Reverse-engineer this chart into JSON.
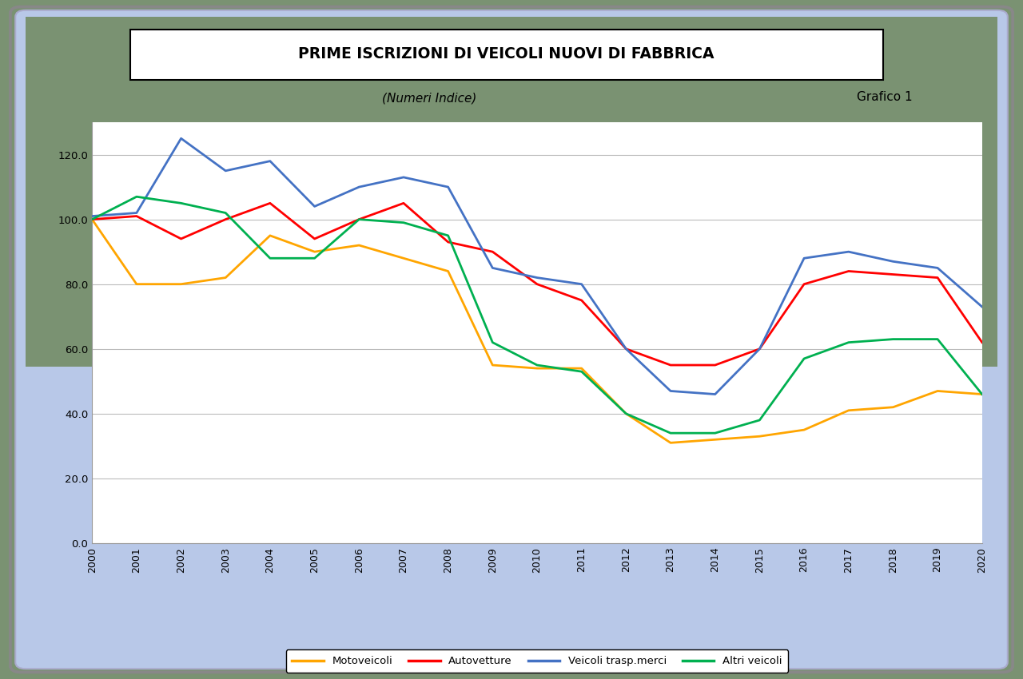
{
  "title": "PRIME ISCRIZIONI DI VEICOLI NUOVI DI FABBRICA",
  "subtitle": "(Numeri Indice)",
  "grafico_label": "Grafico 1",
  "years": [
    2000,
    2001,
    2002,
    2003,
    2004,
    2005,
    2006,
    2007,
    2008,
    2009,
    2010,
    2011,
    2012,
    2013,
    2014,
    2015,
    2016,
    2017,
    2018,
    2019,
    2020
  ],
  "motoveicoli": [
    100.0,
    80.0,
    80.0,
    82.0,
    95.0,
    90.0,
    92.0,
    88.0,
    84.0,
    55.0,
    54.0,
    54.0,
    40.0,
    31.0,
    32.0,
    33.0,
    35.0,
    41.0,
    42.0,
    47.0,
    46.0
  ],
  "autovetture": [
    100.0,
    101.0,
    94.0,
    100.0,
    105.0,
    94.0,
    100.0,
    105.0,
    93.0,
    90.0,
    80.0,
    75.0,
    60.0,
    55.0,
    55.0,
    60.0,
    80.0,
    84.0,
    83.0,
    82.0,
    62.0
  ],
  "veicoli_merci": [
    101.0,
    102.0,
    125.0,
    115.0,
    118.0,
    104.0,
    110.0,
    113.0,
    110.0,
    85.0,
    82.0,
    80.0,
    60.0,
    47.0,
    46.0,
    60.0,
    88.0,
    90.0,
    87.0,
    85.0,
    73.0
  ],
  "altri_veicoli": [
    100.0,
    107.0,
    105.0,
    102.0,
    88.0,
    88.0,
    100.0,
    99.0,
    95.0,
    62.0,
    55.0,
    53.0,
    40.0,
    34.0,
    34.0,
    38.0,
    57.0,
    62.0,
    63.0,
    63.0,
    46.0
  ],
  "motoveicoli_color": "#FFA500",
  "autovetture_color": "#FF0000",
  "veicoli_merci_color": "#4472C4",
  "altri_veicoli_color": "#00B050",
  "background_outer": "#7A9272",
  "background_inner_top": "#7A9272",
  "background_inner_bottom": "#B8C8E8",
  "ylim": [
    0.0,
    130.0
  ],
  "yticks": [
    0.0,
    20.0,
    40.0,
    60.0,
    80.0,
    100.0,
    120.0
  ],
  "legend_labels": [
    "Motoveicoli",
    "Autovetture",
    "Veicoli trasp.merci",
    "Altri veicoli"
  ]
}
